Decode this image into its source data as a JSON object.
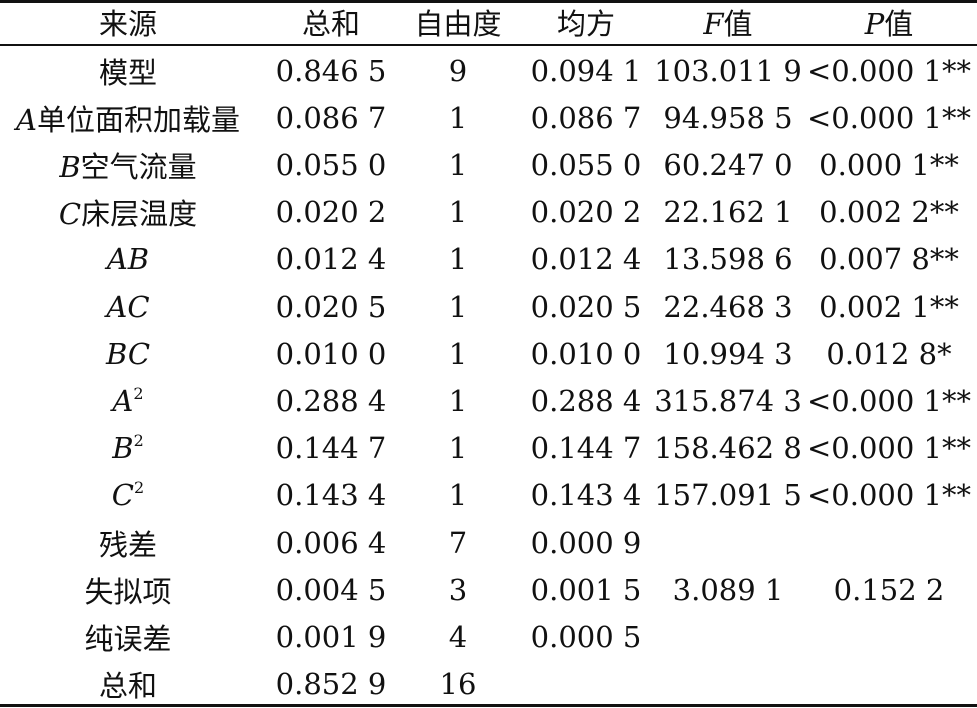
{
  "header": [
    "来源",
    "总和",
    "自由度",
    "均方",
    "F值",
    "P值"
  ],
  "rows": [
    {
      "source_var": "",
      "source_text": "模型",
      "sum": "0.846 5",
      "df": "9",
      "ms": "0.094 1",
      "f": "103.011 9",
      "p": "<0.000 1**"
    },
    {
      "source_var": "A",
      "source_text": "单位面积加载量",
      "sum": "0.086 7",
      "df": "1",
      "ms": "0.086 7",
      "f": "94.958 5",
      "p": "<0.000 1**"
    },
    {
      "source_var": "B",
      "source_text": "空气流量",
      "sum": "0.055 0",
      "df": "1",
      "ms": "0.055 0",
      "f": "60.247 0",
      "p": "0.000 1**"
    },
    {
      "source_var": "C",
      "source_text": "床层温度",
      "sum": "0.020 2",
      "df": "1",
      "ms": "0.020 2",
      "f": "22.162 1",
      "p": "0.002 2**"
    },
    {
      "source_var": "AB",
      "source_text": "",
      "sum": "0.012 4",
      "df": "1",
      "ms": "0.012 4",
      "f": "13.598 6",
      "p": "0.007 8**"
    },
    {
      "source_var": "AC",
      "source_text": "",
      "sum": "0.020 5",
      "df": "1",
      "ms": "0.020 5",
      "f": "22.468 3",
      "p": "0.002 1**"
    },
    {
      "source_var": "BC",
      "source_text": "",
      "sum": "0.010 0",
      "df": "1",
      "ms": "0.010 0",
      "f": "10.994 3",
      "p": "0.012 8*"
    },
    {
      "source_var": "A",
      "source_sup": "2",
      "source_text": "",
      "sum": "0.288 4",
      "df": "1",
      "ms": "0.288 4",
      "f": "315.874 3",
      "p": "<0.000 1**"
    },
    {
      "source_var": "B",
      "source_sup": "2",
      "source_text": "",
      "sum": "0.144 7",
      "df": "1",
      "ms": "0.144 7",
      "f": "158.462 8",
      "p": "<0.000 1**"
    },
    {
      "source_var": "C",
      "source_sup": "2",
      "source_text": "",
      "sum": "0.143 4",
      "df": "1",
      "ms": "0.143 4",
      "f": "157.091 5",
      "p": "<0.000 1**"
    },
    {
      "source_var": "",
      "source_text": "残差",
      "sum": "0.006 4",
      "df": "7",
      "ms": "0.000 9",
      "f": "",
      "p": ""
    },
    {
      "source_var": "",
      "source_text": "失拟项",
      "sum": "0.004 5",
      "df": "3",
      "ms": "0.001 5",
      "f": "3.089 1",
      "p": "0.152 2"
    },
    {
      "source_var": "",
      "source_text": "纯误差",
      "sum": "0.001 9",
      "df": "4",
      "ms": "0.000 5",
      "f": "",
      "p": ""
    },
    {
      "source_var": "",
      "source_text": "总和",
      "sum": "0.852 9",
      "df": "16",
      "ms": "",
      "f": "",
      "p": ""
    }
  ]
}
